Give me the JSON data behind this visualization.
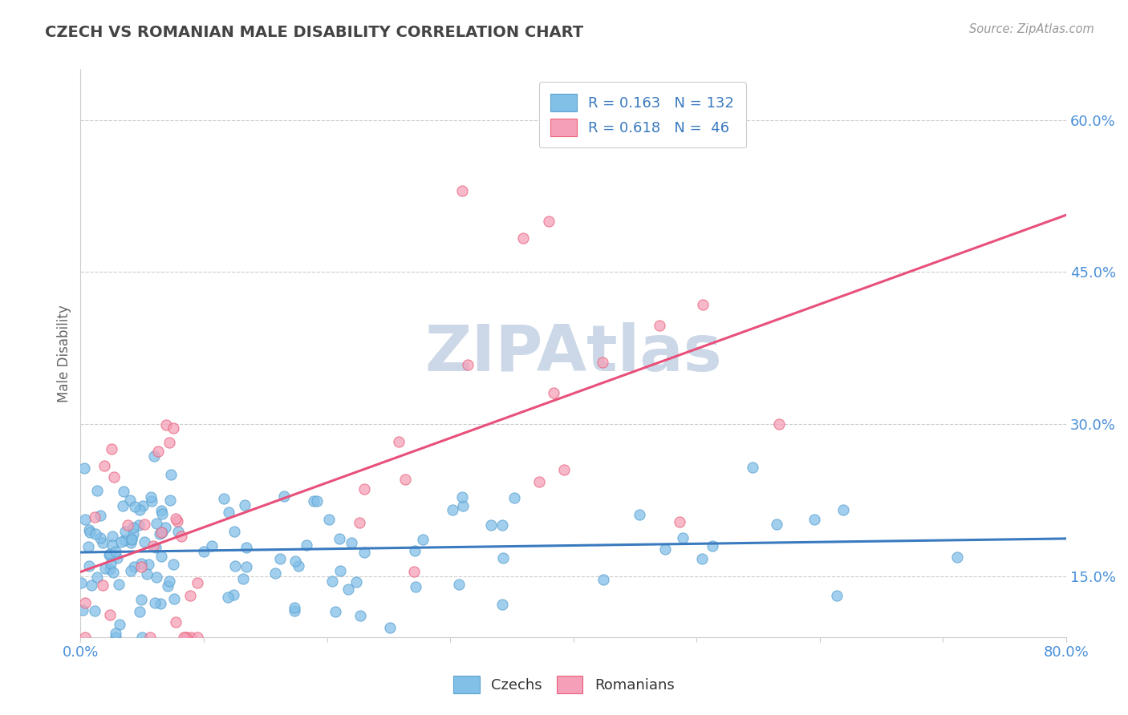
{
  "title": "CZECH VS ROMANIAN MALE DISABILITY CORRELATION CHART",
  "source_text": "Source: ZipAtlas.com",
  "ylabel": "Male Disability",
  "xlim": [
    0.0,
    0.8
  ],
  "ylim": [
    0.09,
    0.65
  ],
  "xtick_positions": [
    0.0,
    0.1,
    0.2,
    0.3,
    0.4,
    0.5,
    0.6,
    0.7,
    0.8
  ],
  "xticklabels": [
    "0.0%",
    "",
    "",
    "",
    "",
    "",
    "",
    "",
    "80.0%"
  ],
  "ytick_positions": [
    0.15,
    0.3,
    0.45,
    0.6
  ],
  "yticklabels": [
    "15.0%",
    "30.0%",
    "45.0%",
    "60.0%"
  ],
  "czech_color": "#82c0e8",
  "czech_edge_color": "#5aa0d0",
  "romanian_color": "#f5a0b8",
  "romanian_edge_color": "#e8607a",
  "czech_line_color": "#3a7abf",
  "romanian_line_color": "#e8507a",
  "czech_R": 0.163,
  "czech_N": 132,
  "romanian_R": 0.618,
  "romanian_N": 46,
  "background_color": "#ffffff",
  "grid_color": "#cccccc",
  "watermark": "ZIPAtlas",
  "watermark_color": "#ccd8e8",
  "title_color": "#444444",
  "axis_label_color": "#666666",
  "tick_color": "#4a90d9",
  "legend_R_color": "#3a7abf",
  "czech_seed": 10,
  "romanian_seed": 20
}
